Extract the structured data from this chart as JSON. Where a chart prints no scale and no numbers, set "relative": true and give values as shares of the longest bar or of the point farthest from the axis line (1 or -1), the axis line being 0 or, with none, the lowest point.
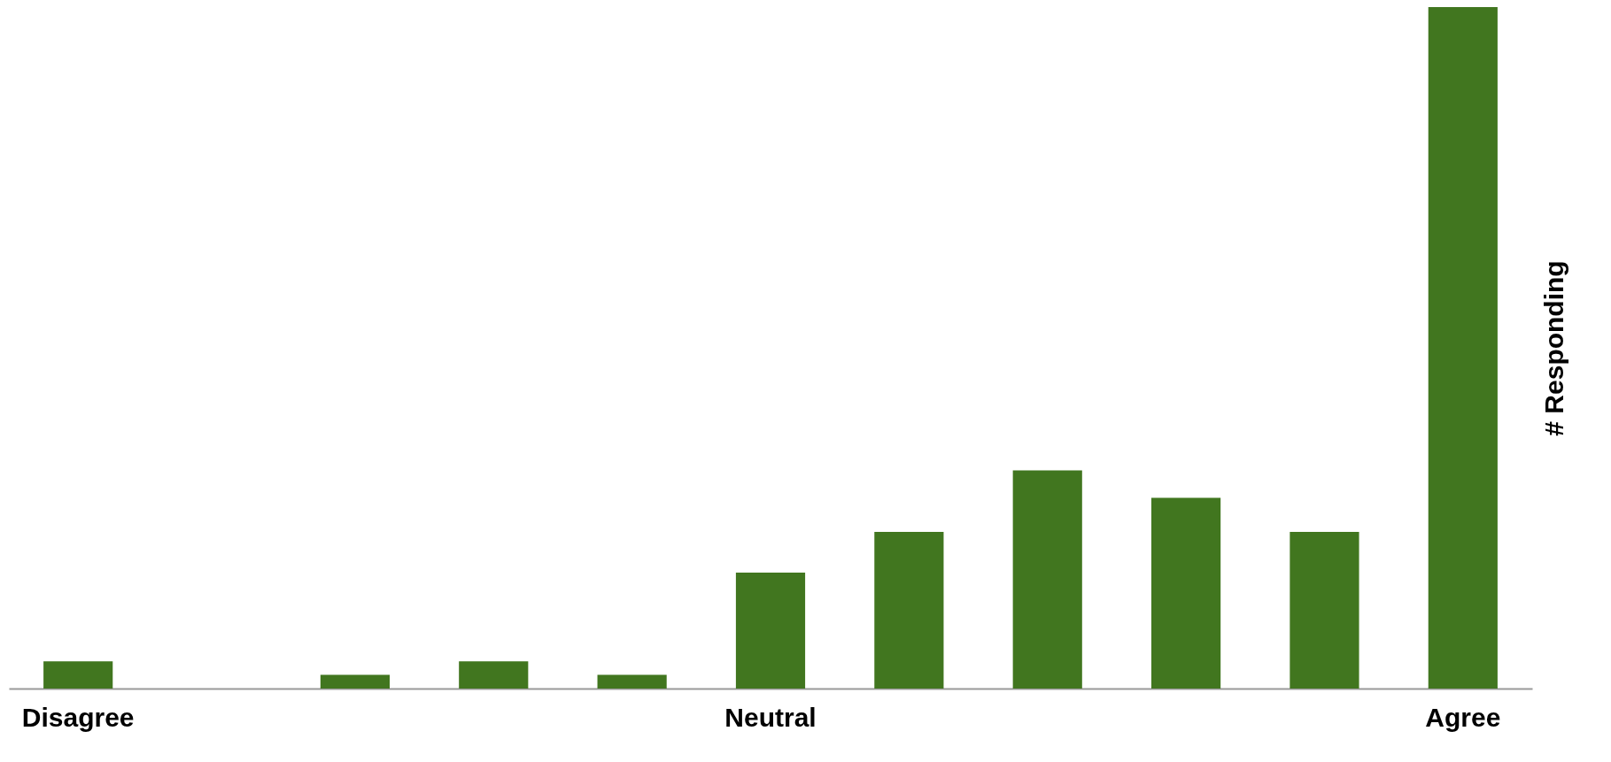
{
  "chart_data": {
    "type": "bar",
    "relative": true,
    "ylabel": "# Responding",
    "categories": [
      "Disagree",
      null,
      null,
      null,
      null,
      "Neutral",
      null,
      null,
      null,
      null,
      "Agree"
    ],
    "values": [
      0.04,
      0,
      0.02,
      0.04,
      0.02,
      0.17,
      0.23,
      0.32,
      0.28,
      0.23,
      1
    ],
    "color": "#41761f"
  }
}
